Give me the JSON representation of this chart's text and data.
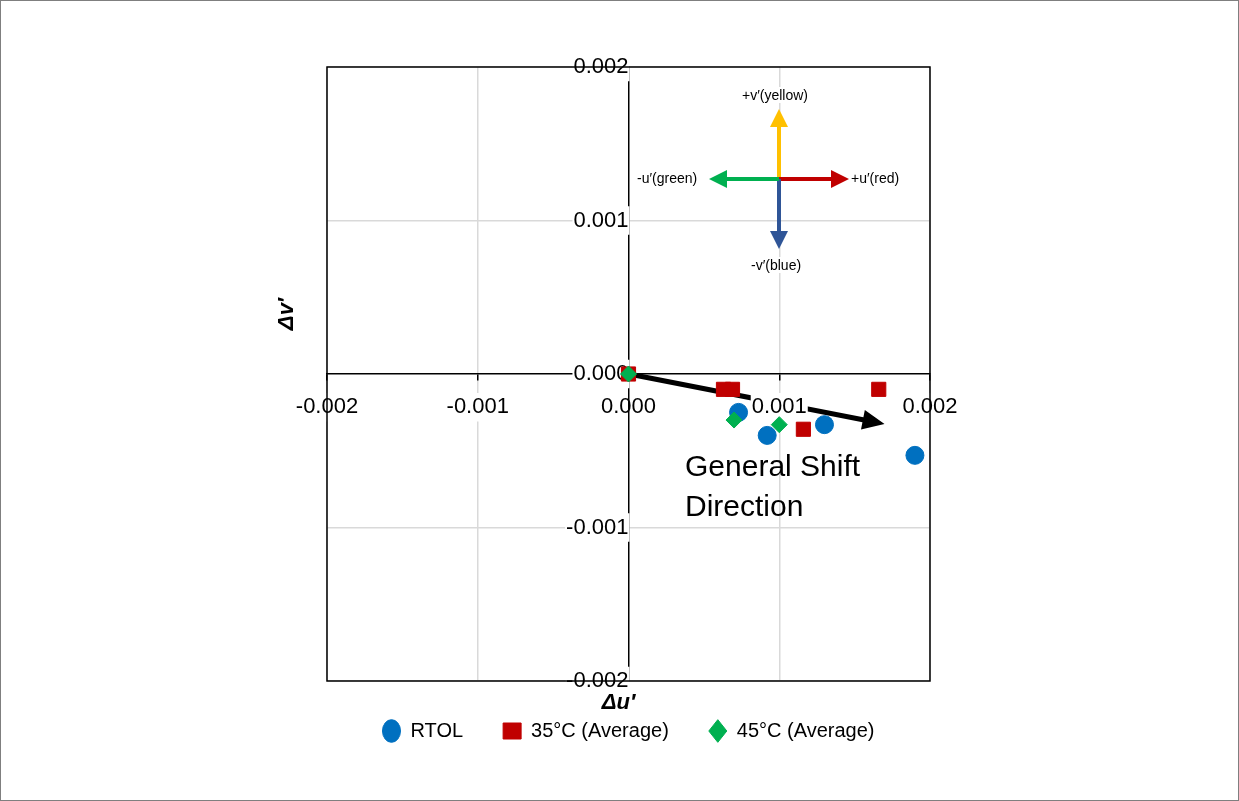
{
  "chart_data": {
    "type": "scatter",
    "xlabel": "Δu′",
    "ylabel": "Δv′",
    "xlim": [
      -0.002,
      0.002
    ],
    "ylim": [
      -0.002,
      0.002
    ],
    "xticks": [
      {
        "value": -0.002,
        "label": "-0.002"
      },
      {
        "value": -0.001,
        "label": "-0.001"
      },
      {
        "value": 0,
        "label": "0.000"
      },
      {
        "value": 0.001,
        "label": "0.001"
      },
      {
        "value": 0.002,
        "label": "0.002"
      }
    ],
    "yticks": [
      {
        "value": -0.002,
        "label": "-0.002"
      },
      {
        "value": -0.001,
        "label": "-0.001"
      },
      {
        "value": 0,
        "label": "0.000"
      },
      {
        "value": 0.001,
        "label": "0.001"
      },
      {
        "value": 0.002,
        "label": "0.002"
      }
    ],
    "grid": true,
    "legend": "bottom",
    "series": [
      {
        "name": "RTOL",
        "color": "#0070c0",
        "marker": "circle",
        "x": [
          0.00073,
          0.00092,
          0.0013,
          0.0019
        ],
        "values": [
          -0.00025,
          -0.0004,
          -0.00033,
          -0.00053
        ]
      },
      {
        "name": "35°C (Average)",
        "color": "#c00000",
        "marker": "square",
        "x": [
          0,
          0.00063,
          0.00069,
          0.00116,
          0.00166
        ],
        "values": [
          0,
          -0.0001,
          -0.0001,
          -0.00036,
          -0.0001
        ]
      },
      {
        "name": "45°C (Average)",
        "color": "#00b050",
        "marker": "diamond",
        "x": [
          0,
          0.0007,
          0.001
        ],
        "values": [
          0,
          -0.0003,
          -0.00033
        ]
      }
    ],
    "annotations": [
      "General Shift Direction",
      "+v′(yellow)",
      "+u′(red)",
      "-v′(blue)",
      "-u′(green)"
    ]
  }
}
